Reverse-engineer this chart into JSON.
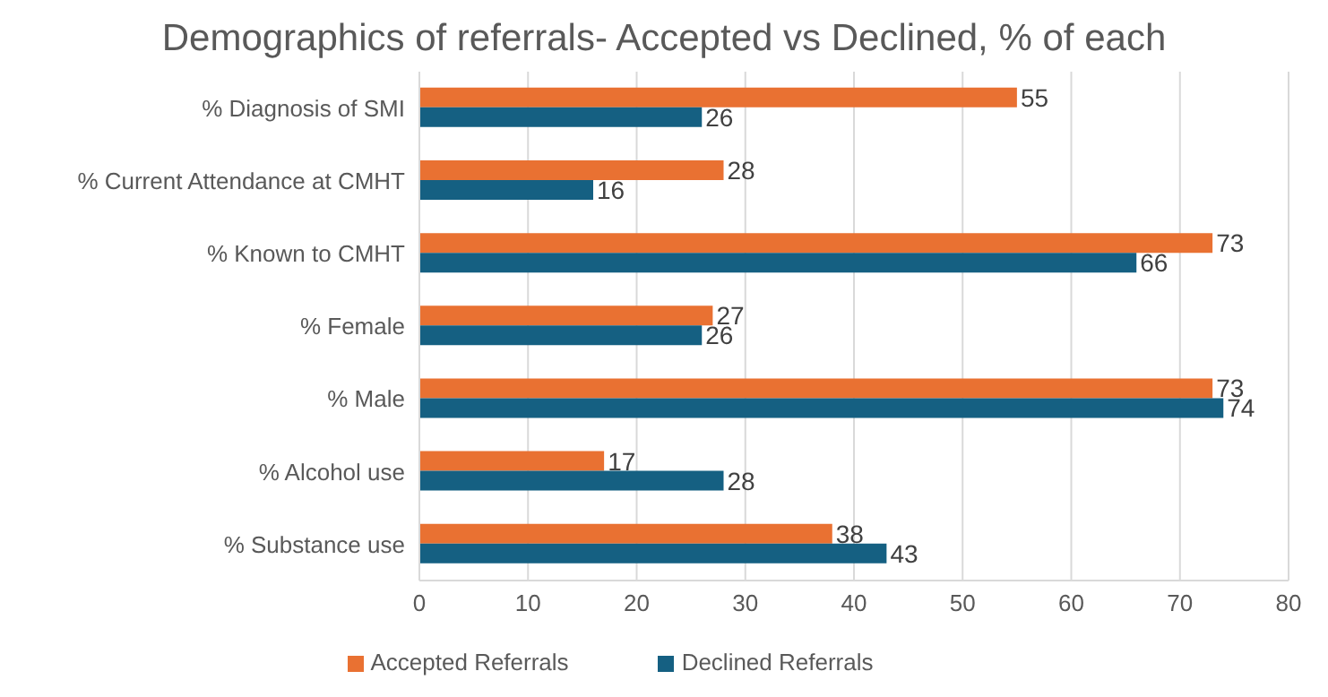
{
  "chart_data": {
    "type": "bar",
    "orientation": "horizontal",
    "title": "Demographics of referrals- Accepted vs Declined, % of each",
    "categories": [
      "% Diagnosis of SMI",
      "% Current Attendance at CMHT",
      "% Known to CMHT",
      "% Female",
      "% Male",
      "% Alcohol use",
      "% Substance use"
    ],
    "series": [
      {
        "name": "Accepted Referrals",
        "color": "#e97132",
        "values": [
          55,
          28,
          73,
          27,
          73,
          17,
          38
        ]
      },
      {
        "name": "Declined Referrals",
        "color": "#156082",
        "values": [
          26,
          16,
          66,
          26,
          74,
          28,
          43
        ]
      }
    ],
    "xlim": [
      0,
      80
    ],
    "xticks": [
      0,
      10,
      20,
      30,
      40,
      50,
      60,
      70,
      80
    ],
    "grid": "x",
    "legend": "bottom",
    "data_labels": true
  }
}
